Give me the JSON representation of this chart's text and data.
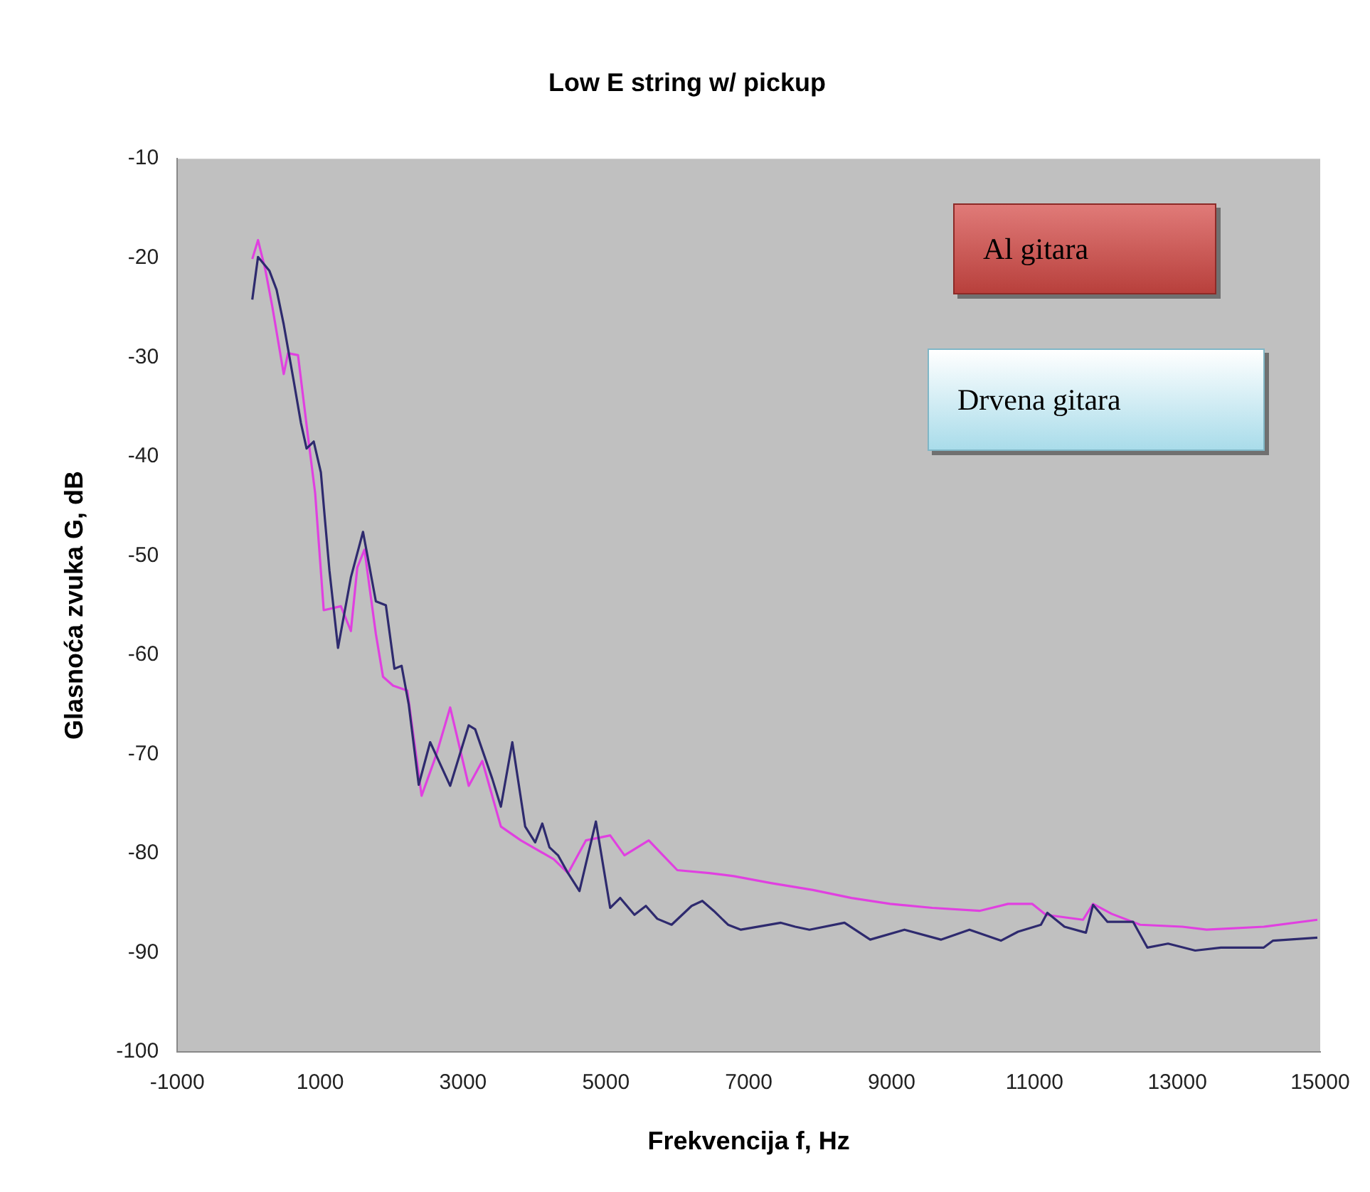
{
  "chart_data": {
    "type": "line",
    "title": "Low E string w/ pickup",
    "xlabel": "Frekvencija f, Hz",
    "ylabel": "Glasnoća zvuka G, dB",
    "xlim": [
      -1000,
      15000
    ],
    "xticks": [
      -1000,
      1000,
      3000,
      5000,
      7000,
      9000,
      11000,
      13000,
      15000
    ],
    "ylim": [
      -100,
      -10
    ],
    "yticks": [
      -100,
      -90,
      -80,
      -70,
      -60,
      -50,
      -40,
      -30,
      -20,
      -10
    ],
    "grid": false,
    "legend": false,
    "marker": "none",
    "line_style": "solid",
    "annotations": [
      "Al gitara",
      "Drvena gitara"
    ],
    "series": [
      {
        "color": "#2e2a6e",
        "x": [
          50,
          130,
          290,
          390,
          490,
          630,
          730,
          810,
          910,
          1010,
          1070,
          1130,
          1250,
          1430,
          1600,
          1780,
          1920,
          2040,
          2140,
          2240,
          2380,
          2540,
          2820,
          3080,
          3170,
          3410,
          3530,
          3690,
          3870,
          4010,
          4110,
          4210,
          4330,
          4470,
          4630,
          4860,
          5060,
          5200,
          5400,
          5560,
          5720,
          5920,
          6200,
          6350,
          6510,
          6710,
          6890,
          7450,
          7650,
          7850,
          8340,
          8700,
          9180,
          9690,
          10090,
          10530,
          10770,
          11090,
          11180,
          11420,
          11720,
          11820,
          12020,
          12380,
          12580,
          12870,
          13250,
          13610,
          14210,
          14340,
          14960
        ],
        "values": [
          -24.2,
          -19.9,
          -21.3,
          -23.2,
          -26.7,
          -32.4,
          -36.6,
          -39.2,
          -38.5,
          -41.6,
          -46.6,
          -51.5,
          -59.3,
          -52.2,
          -47.6,
          -54.6,
          -55,
          -61.4,
          -61.1,
          -65,
          -73.1,
          -68.8,
          -73.2,
          -67.1,
          -67.5,
          -72.5,
          -75.3,
          -68.8,
          -77.3,
          -78.9,
          -77,
          -79.4,
          -80.2,
          -82,
          -83.8,
          -76.8,
          -85.5,
          -84.5,
          -86.2,
          -85.3,
          -86.6,
          -87.2,
          -85.3,
          -84.8,
          -85.8,
          -87.2,
          -87.7,
          -87,
          -87.4,
          -87.7,
          -87,
          -88.7,
          -87.7,
          -88.7,
          -87.7,
          -88.8,
          -87.9,
          -87.2,
          -86,
          -87.4,
          -88,
          -85.2,
          -86.9,
          -86.9,
          -89.5,
          -89.1,
          -89.8,
          -89.5,
          -89.5,
          -88.8,
          -88.5
        ]
      },
      {
        "color": "#e040e0",
        "x": [
          50,
          130,
          230,
          330,
          490,
          550,
          690,
          830,
          930,
          1050,
          1290,
          1430,
          1520,
          1620,
          1780,
          1880,
          2020,
          2220,
          2420,
          2620,
          2820,
          3080,
          3270,
          3530,
          3810,
          4270,
          4470,
          4720,
          5060,
          5260,
          5600,
          5800,
          6000,
          6450,
          6790,
          7310,
          7900,
          8440,
          8980,
          9570,
          10230,
          10630,
          10970,
          11160,
          11680,
          11820,
          12080,
          12480,
          13070,
          13410,
          14210,
          14960
        ],
        "values": [
          -20.1,
          -18.2,
          -21.1,
          -24.9,
          -31.7,
          -29.6,
          -29.8,
          -38,
          -43.7,
          -55.5,
          -55.1,
          -57.6,
          -51.2,
          -49.4,
          -57.9,
          -62.2,
          -63.1,
          -63.6,
          -74.2,
          -70.2,
          -65.3,
          -73.2,
          -70.7,
          -77.3,
          -78.7,
          -80.6,
          -82,
          -78.7,
          -78.2,
          -80.2,
          -78.7,
          -80.2,
          -81.7,
          -82,
          -82.3,
          -83,
          -83.7,
          -84.5,
          -85.1,
          -85.5,
          -85.8,
          -85.1,
          -85.1,
          -86.2,
          -86.7,
          -85.1,
          -86.1,
          -87.2,
          -87.4,
          -87.7,
          -87.4,
          -86.7
        ]
      }
    ]
  }
}
